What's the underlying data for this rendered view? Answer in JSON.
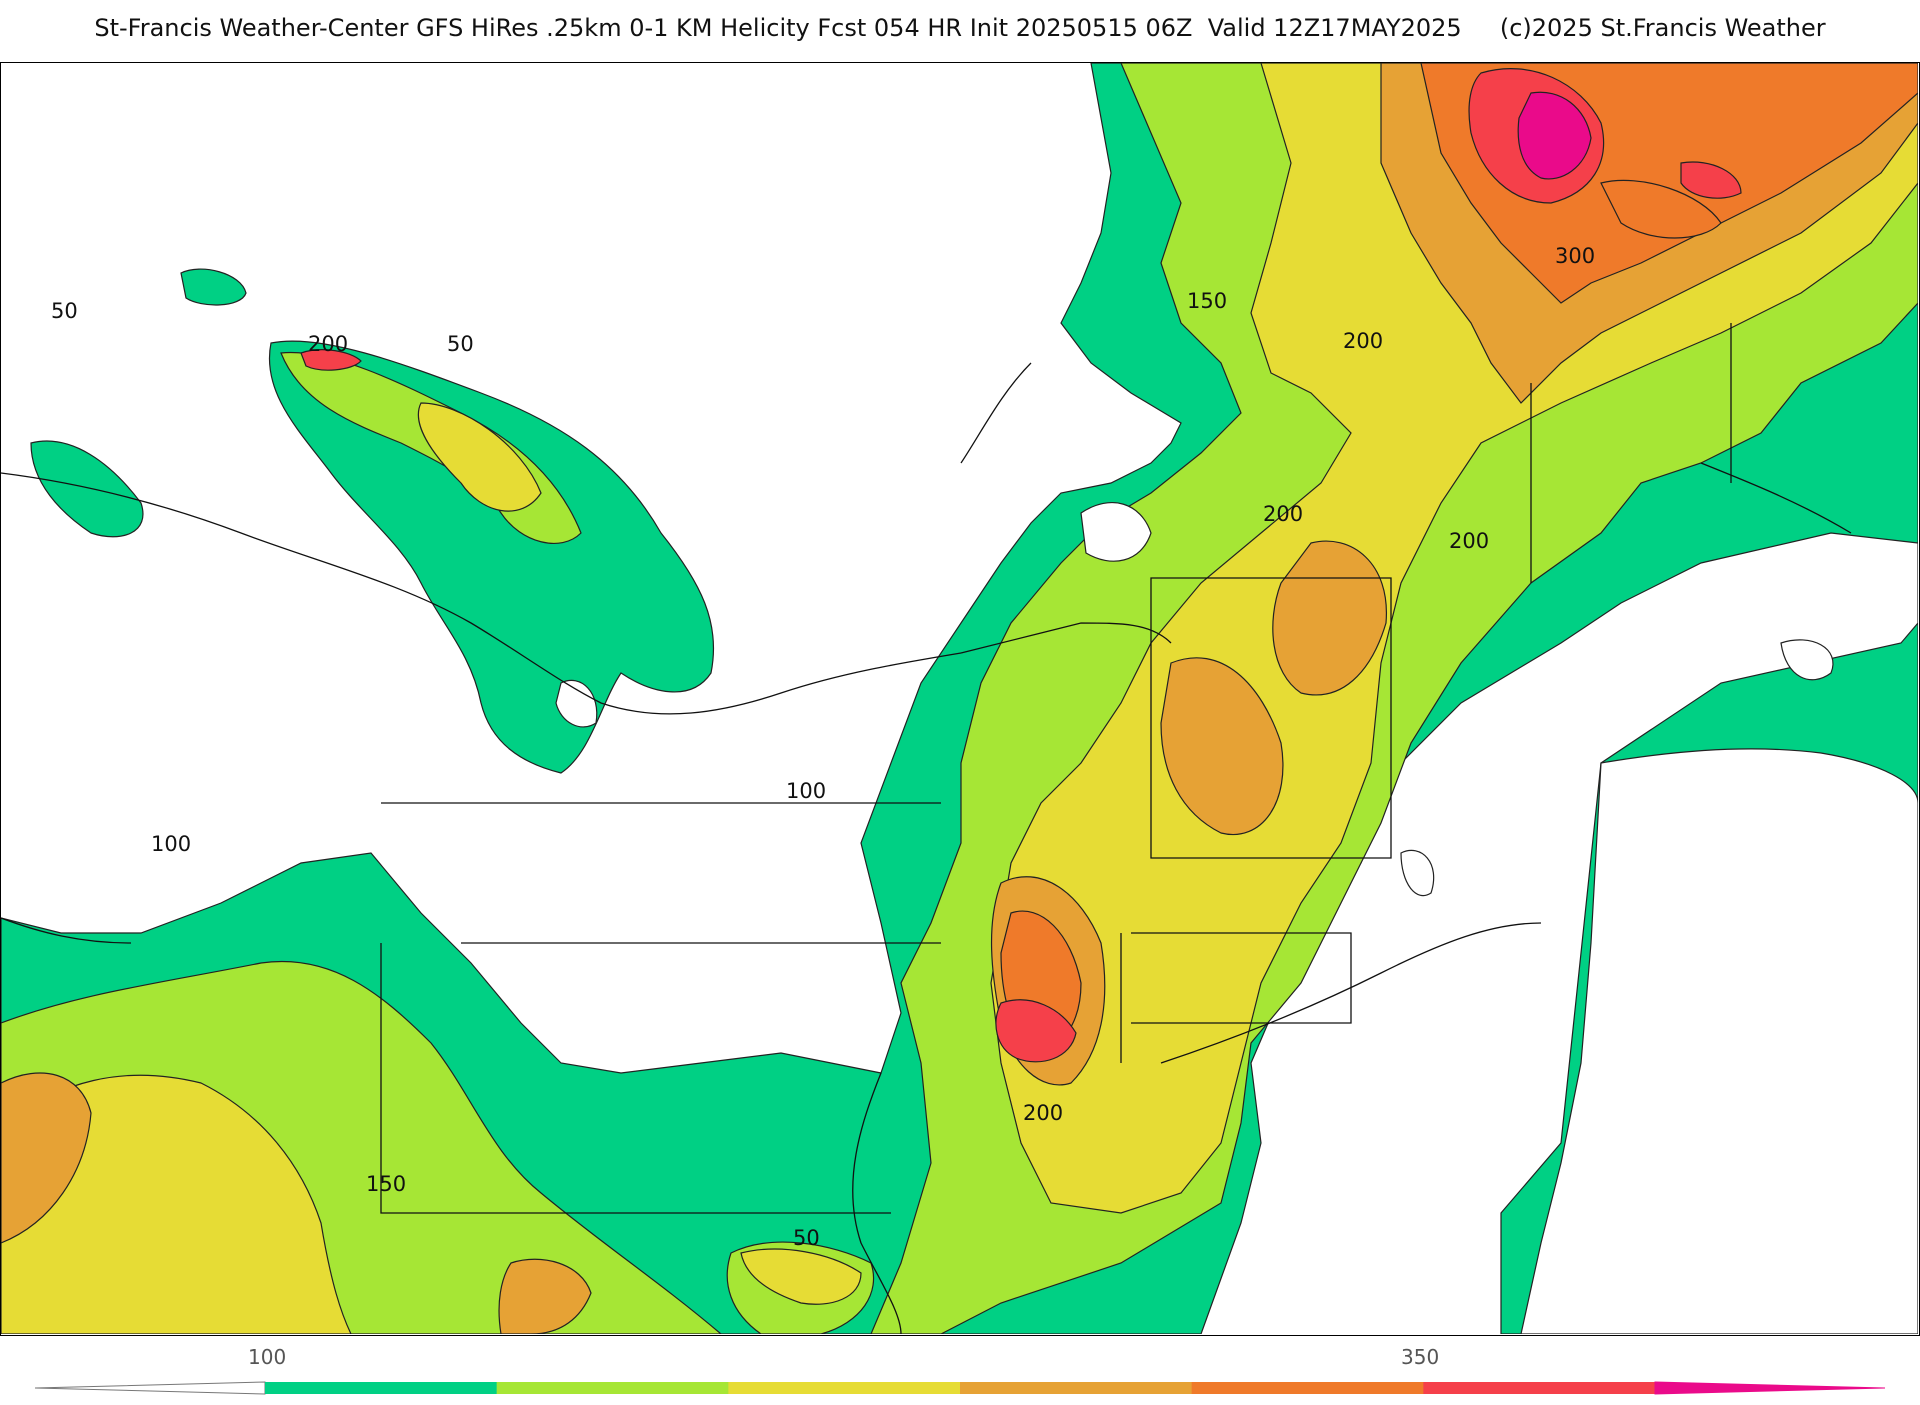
{
  "title": "St-Francis Weather-Center GFS HiRes .25km 0-1 KM Helicity Fcst 054 HR Init 20250515 06Z  Valid 12Z17MAY2025     (c)2025 St.Francis Weather",
  "contour_labels": [
    "50",
    "200",
    "50",
    "150",
    "200",
    "300",
    "200",
    "200",
    "100",
    "100",
    "200",
    "150",
    "50"
  ],
  "colorbar": {
    "ticks": [
      "100",
      "350"
    ],
    "colors": [
      "#00d084",
      "#a6e635",
      "#e6dc35",
      "#e6a235",
      "#ef7a2a",
      "#f5404a",
      "#ea0a8a"
    ]
  }
}
